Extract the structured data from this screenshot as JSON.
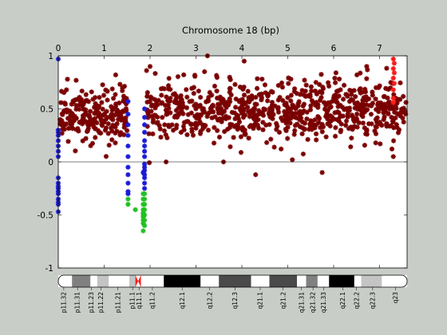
{
  "chart_data": {
    "type": "scatter",
    "title": "Chromosome 18 (bp)",
    "title_position": "top",
    "x_axis_position": "top",
    "xlim": [
      0,
      7.6
    ],
    "ylim": [
      -1,
      1
    ],
    "x_ticks": [
      0,
      1,
      2,
      3,
      4,
      5,
      6,
      7
    ],
    "x_tick_labels": [
      "0",
      "1",
      "2",
      "3",
      "4",
      "5",
      "6",
      "7"
    ],
    "y_ticks": [
      -1,
      -0.5,
      0,
      0.5,
      1
    ],
    "y_tick_labels": [
      "-1",
      "-0.5",
      "0",
      "0.5",
      "1"
    ],
    "zero_line": 0,
    "grid": false,
    "legend": "none",
    "colors": {
      "background": "#c9cdc8",
      "plot_bg": "#ffffff",
      "main": "#7a0000",
      "blue": "#1b1bd6",
      "green": "#22c022",
      "red": "#ff1a1a",
      "centromere": "#ff1a1a"
    },
    "series": [
      {
        "color_key": "main",
        "density_segments": [
          {
            "x_start": 0.02,
            "x_end": 1.5,
            "count": 230,
            "y_mean": 0.43,
            "y_sd": 0.13
          },
          {
            "x_start": 1.92,
            "x_end": 7.58,
            "count": 760,
            "y_mean": 0.48,
            "y_sd": 0.14
          }
        ],
        "outliers": [
          [
            3.25,
            1.0
          ],
          [
            4.05,
            0.95
          ],
          [
            6.72,
            0.9
          ],
          [
            2.0,
            0.9
          ],
          [
            4.3,
            -0.12
          ],
          [
            5.75,
            -0.1
          ],
          [
            2.35,
            0.0
          ],
          [
            3.6,
            0.0
          ],
          [
            1.25,
            0.82
          ],
          [
            0.2,
            0.78
          ],
          [
            5.1,
            0.02
          ],
          [
            6.05,
            0.84
          ],
          [
            7.3,
            0.05
          ]
        ]
      },
      {
        "color_key": "blue",
        "points": [
          [
            0.0,
            0.97
          ],
          [
            0.0,
            0.3
          ],
          [
            0.0,
            0.28
          ],
          [
            0.0,
            0.25
          ],
          [
            0.0,
            0.2
          ],
          [
            0.0,
            0.15
          ],
          [
            0.0,
            0.1
          ],
          [
            0.0,
            0.05
          ],
          [
            0.0,
            -0.15
          ],
          [
            0.0,
            -0.2
          ],
          [
            0.0,
            -0.23
          ],
          [
            0.0,
            -0.25
          ],
          [
            0.0,
            -0.28
          ],
          [
            0.0,
            -0.3
          ],
          [
            0.0,
            -0.35
          ],
          [
            0.0,
            -0.38
          ],
          [
            0.0,
            -0.4
          ],
          [
            0.0,
            -0.47
          ],
          [
            1.52,
            0.57
          ],
          [
            1.52,
            0.45
          ],
          [
            1.52,
            0.35
          ],
          [
            1.52,
            0.25
          ],
          [
            1.52,
            0.15
          ],
          [
            1.52,
            0.05
          ],
          [
            1.52,
            -0.05
          ],
          [
            1.52,
            -0.12
          ],
          [
            1.52,
            -0.2
          ],
          [
            1.52,
            -0.28
          ],
          [
            1.52,
            -0.3
          ],
          [
            1.88,
            0.5
          ],
          [
            1.88,
            0.42
          ],
          [
            1.88,
            0.35
          ],
          [
            1.88,
            0.28
          ],
          [
            1.88,
            0.2
          ],
          [
            1.88,
            0.15
          ],
          [
            1.88,
            0.1
          ],
          [
            1.88,
            0.05
          ],
          [
            1.88,
            -0.02
          ],
          [
            1.88,
            -0.05
          ],
          [
            1.88,
            -0.08
          ],
          [
            1.88,
            -0.12
          ],
          [
            1.88,
            -0.15
          ],
          [
            1.88,
            -0.2
          ],
          [
            1.88,
            -0.25
          ],
          [
            1.85,
            -0.1
          ]
        ]
      },
      {
        "color_key": "green",
        "points": [
          [
            1.52,
            -0.35
          ],
          [
            1.52,
            -0.4
          ],
          [
            1.68,
            -0.45
          ],
          [
            1.85,
            -0.3
          ],
          [
            1.85,
            -0.35
          ],
          [
            1.85,
            -0.4
          ],
          [
            1.85,
            -0.45
          ],
          [
            1.85,
            -0.48
          ],
          [
            1.85,
            -0.5
          ],
          [
            1.85,
            -0.52
          ],
          [
            1.85,
            -0.55
          ],
          [
            1.85,
            -0.58
          ],
          [
            1.85,
            -0.65
          ],
          [
            1.88,
            -0.3
          ],
          [
            1.88,
            -0.35
          ],
          [
            1.88,
            -0.4
          ],
          [
            1.88,
            -0.45
          ],
          [
            1.88,
            -0.5
          ],
          [
            1.88,
            -0.55
          ],
          [
            1.88,
            -0.6
          ]
        ]
      },
      {
        "color_key": "red",
        "points": [
          [
            7.3,
            0.97
          ],
          [
            7.32,
            0.93
          ],
          [
            7.3,
            0.88
          ],
          [
            7.32,
            0.84
          ],
          [
            7.3,
            0.79
          ],
          [
            7.32,
            0.74
          ],
          [
            7.3,
            0.68
          ],
          [
            7.3,
            0.6
          ],
          [
            7.3,
            0.56
          ]
        ]
      }
    ],
    "ideogram": {
      "bands": [
        {
          "start": 0.0,
          "end": 0.3,
          "shade": "#ffffff"
        },
        {
          "start": 0.3,
          "end": 0.7,
          "shade": "#808080"
        },
        {
          "start": 0.7,
          "end": 0.85,
          "shade": "#ffffff"
        },
        {
          "start": 0.85,
          "end": 1.1,
          "shade": "#c4c4c4"
        },
        {
          "start": 1.1,
          "end": 1.55,
          "shade": "#ffffff"
        },
        {
          "start": 1.55,
          "end": 1.68,
          "shade": "#c4c4c4"
        },
        {
          "start": 1.68,
          "end": 1.8,
          "shade": "centromere"
        },
        {
          "start": 1.8,
          "end": 2.3,
          "shade": "#ffffff"
        },
        {
          "start": 2.3,
          "end": 3.1,
          "shade": "#000000"
        },
        {
          "start": 3.1,
          "end": 3.5,
          "shade": "#ffffff"
        },
        {
          "start": 3.5,
          "end": 4.2,
          "shade": "#4a4a4a"
        },
        {
          "start": 4.2,
          "end": 4.6,
          "shade": "#ffffff"
        },
        {
          "start": 4.6,
          "end": 5.2,
          "shade": "#4a4a4a"
        },
        {
          "start": 5.2,
          "end": 5.4,
          "shade": "#ffffff"
        },
        {
          "start": 5.4,
          "end": 5.65,
          "shade": "#808080"
        },
        {
          "start": 5.65,
          "end": 5.9,
          "shade": "#ffffff"
        },
        {
          "start": 5.9,
          "end": 6.45,
          "shade": "#000000"
        },
        {
          "start": 6.45,
          "end": 6.6,
          "shade": "#ffffff"
        },
        {
          "start": 6.6,
          "end": 7.05,
          "shade": "#c4c4c4"
        },
        {
          "start": 7.05,
          "end": 7.6,
          "shade": "#ffffff"
        }
      ],
      "labels": [
        {
          "text": "p11.32",
          "x": 0.12
        },
        {
          "text": "p11.31",
          "x": 0.42
        },
        {
          "text": "p11.23",
          "x": 0.72
        },
        {
          "text": "p11.22",
          "x": 0.93
        },
        {
          "text": "p11.21",
          "x": 1.3
        },
        {
          "text": "p11.1",
          "x": 1.62
        },
        {
          "text": "q11.1",
          "x": 1.76
        },
        {
          "text": "q11.2",
          "x": 2.05
        },
        {
          "text": "q12.1",
          "x": 2.7
        },
        {
          "text": "q12.2",
          "x": 3.3
        },
        {
          "text": "q12.3",
          "x": 3.85
        },
        {
          "text": "q21.1",
          "x": 4.4
        },
        {
          "text": "q21.2",
          "x": 4.9
        },
        {
          "text": "q21.31",
          "x": 5.3
        },
        {
          "text": "q21.32",
          "x": 5.55
        },
        {
          "text": "q21.33",
          "x": 5.78
        },
        {
          "text": "q22.1",
          "x": 6.2
        },
        {
          "text": "q22.2",
          "x": 6.5
        },
        {
          "text": "q22.3",
          "x": 6.85
        },
        {
          "text": "q23",
          "x": 7.35
        }
      ]
    }
  }
}
